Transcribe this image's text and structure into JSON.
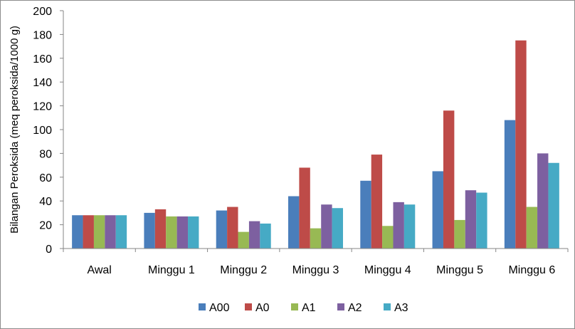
{
  "chart_data": {
    "type": "bar",
    "title": "",
    "xlabel": "",
    "ylabel": "Bilangan Peroksida (meq peroksida/1000 g)",
    "ylim": [
      0,
      200
    ],
    "yticks": [
      0,
      20,
      40,
      60,
      80,
      100,
      120,
      140,
      160,
      180,
      200
    ],
    "grid": false,
    "legend_position": "bottom",
    "categories": [
      "Awal",
      "Minggu 1",
      "Minggu 2",
      "Minggu 3",
      "Minggu 4",
      "Minggu 5",
      "Minggu 6"
    ],
    "series": [
      {
        "name": "A00",
        "color": "#4a7ebb",
        "values": [
          28,
          30,
          32,
          44,
          57,
          65,
          108
        ]
      },
      {
        "name": "A0",
        "color": "#be4b48",
        "values": [
          28,
          33,
          35,
          68,
          79,
          116,
          175
        ]
      },
      {
        "name": "A1",
        "color": "#98b954",
        "values": [
          28,
          27,
          14,
          17,
          19,
          24,
          35
        ]
      },
      {
        "name": "A2",
        "color": "#7d60a0",
        "values": [
          28,
          27,
          23,
          37,
          39,
          49,
          80
        ]
      },
      {
        "name": "A3",
        "color": "#46aac5",
        "values": [
          28,
          27,
          21,
          34,
          37,
          47,
          72
        ]
      }
    ]
  }
}
